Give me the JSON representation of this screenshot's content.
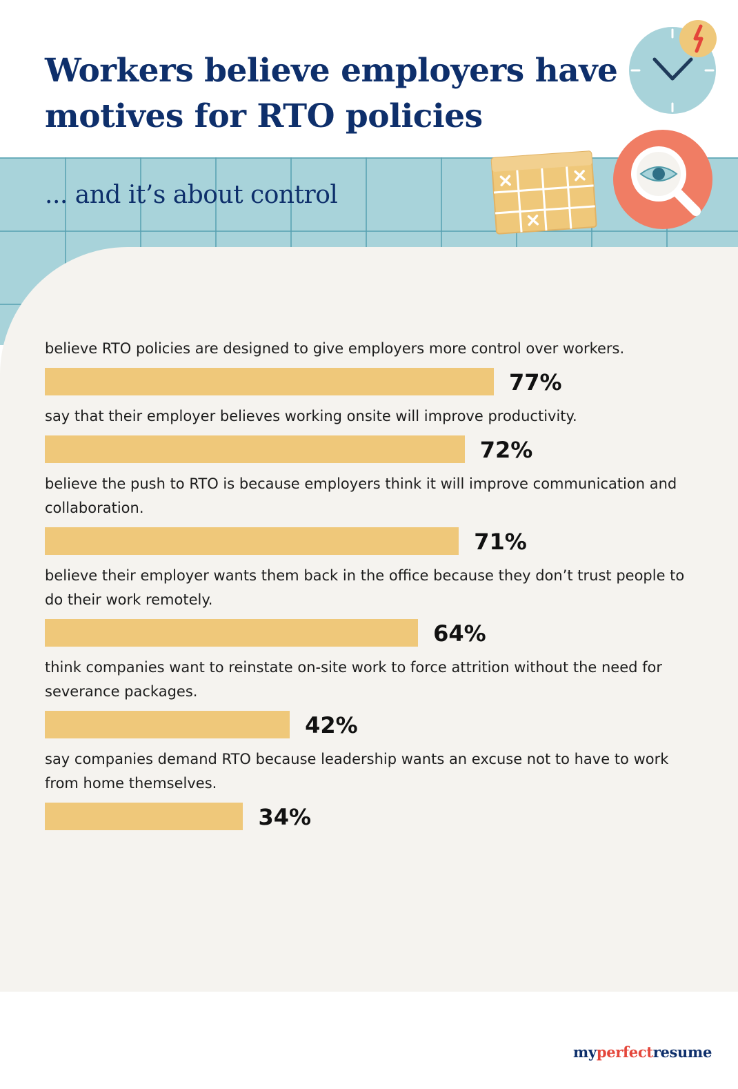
{
  "title": "Workers believe employers have motives for RTO policies",
  "subtitle": "... and it’s about control",
  "brand": {
    "part1": "my",
    "part2": "perfect",
    "part3": "resume"
  },
  "colors": {
    "title": "#0e2f6b",
    "bar": "#efc87a",
    "grid_band": "#a8d3da",
    "card": "#f5f3ef",
    "brand_accent": "#e4453a"
  },
  "icons": [
    "clock-icon",
    "lightning-icon",
    "calendar-icon",
    "magnifier-eye-icon"
  ],
  "chart_data": {
    "type": "bar",
    "orientation": "horizontal",
    "value_unit": "%",
    "xlim": [
      0,
      100
    ],
    "categories": [
      "believe RTO policies are designed to give employers more control over workers.",
      "say that their employer believes working onsite will improve productivity.",
      "believe the push to RTO is because employers think it will improve communication and collaboration.",
      "believe their employer wants them back in the office because they don’t trust people to do their work remotely.",
      "think companies want to reinstate on-site work to force attrition without the need for severance packages.",
      "say companies demand RTO because leadership wants an excuse not to have to work from home themselves."
    ],
    "values": [
      77,
      72,
      71,
      64,
      42,
      34
    ],
    "data_labels": [
      "77%",
      "72%",
      "71%",
      "64%",
      "42%",
      "34%"
    ]
  }
}
